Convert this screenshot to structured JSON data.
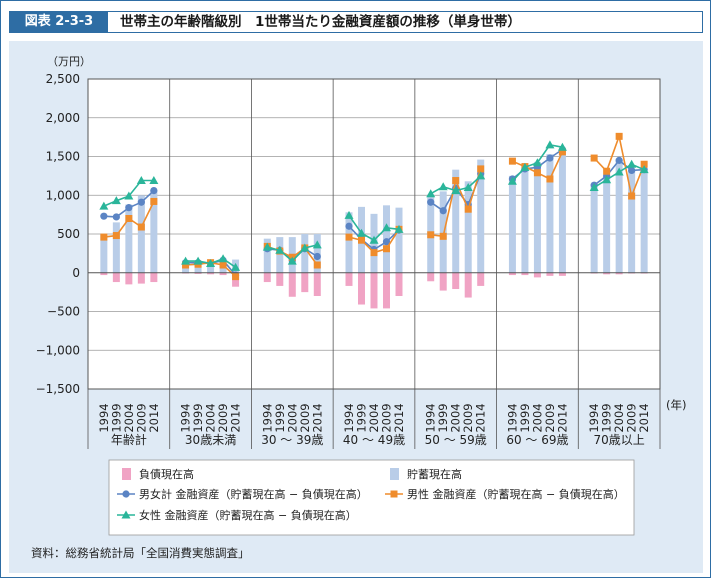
{
  "header": {
    "figure_label": "図表 2-3-3",
    "title": "世帯主の年齢階級別　1世帯当たり金融資産額の推移（単身世帯）"
  },
  "source": "資料：総務省統計局「全国消費実態調査」",
  "colors": {
    "frame": "#2e6da4",
    "panel": "#dfeaf5",
    "savings": "#b9cde8",
    "debt": "#f0a3c4",
    "total": "#5b84c4",
    "male": "#ef8c2c",
    "female": "#2ab59a"
  },
  "chart_data": {
    "type": "bar",
    "unit_label": "（万円）",
    "x_unit_label": "(年)",
    "ylim": [
      -1500,
      2500
    ],
    "yticks": [
      2500,
      2000,
      1500,
      1000,
      500,
      0,
      -500,
      -1000,
      -1500
    ],
    "ytick_labels": [
      "2,500",
      "2,000",
      "1,500",
      "1,000",
      "500",
      "0",
      "−500",
      "−1,000",
      "−1,500"
    ],
    "grid": true,
    "groups": [
      {
        "label": "年齢計",
        "years": [
          "1994",
          "1999",
          "2004",
          "2009",
          "2014"
        ],
        "savings": [
          500,
          650,
          880,
          1000,
          1070
        ],
        "debt": [
          -30,
          -120,
          -150,
          -140,
          -120
        ],
        "total": [
          730,
          720,
          840,
          910,
          1060
        ],
        "male": [
          460,
          480,
          700,
          590,
          920
        ],
        "female": [
          860,
          930,
          990,
          1190,
          1190
        ]
      },
      {
        "label": "30歳未満",
        "years": [
          "1994",
          "1999",
          "2004",
          "2009",
          "2014"
        ],
        "savings": [
          150,
          150,
          160,
          160,
          170
        ],
        "debt": [
          -10,
          -15,
          -20,
          -30,
          -180
        ],
        "total": [
          130,
          130,
          120,
          160,
          -30
        ],
        "male": [
          100,
          110,
          130,
          100,
          -50
        ],
        "female": [
          150,
          150,
          120,
          180,
          70
        ]
      },
      {
        "label": "30 ～ 39歳",
        "years": [
          "1994",
          "1999",
          "2004",
          "2009",
          "2014"
        ],
        "savings": [
          440,
          460,
          460,
          500,
          500
        ],
        "debt": [
          -120,
          -170,
          -310,
          -250,
          -300
        ],
        "total": [
          310,
          290,
          160,
          310,
          210
        ],
        "male": [
          340,
          280,
          200,
          320,
          100
        ],
        "female": [
          330,
          290,
          150,
          320,
          360
        ]
      },
      {
        "label": "40 ～ 49歳",
        "years": [
          "1994",
          "1999",
          "2004",
          "2009",
          "2014"
        ],
        "savings": [
          780,
          850,
          760,
          870,
          840
        ],
        "debt": [
          -170,
          -410,
          -460,
          -460,
          -300
        ],
        "total": [
          600,
          430,
          300,
          400,
          550
        ],
        "male": [
          460,
          420,
          260,
          310,
          560
        ],
        "female": [
          740,
          510,
          420,
          580,
          560
        ]
      },
      {
        "label": "50 ～ 59歳",
        "years": [
          "1994",
          "1999",
          "2004",
          "2009",
          "2014"
        ],
        "savings": [
          1010,
          1050,
          1330,
          1180,
          1460
        ],
        "debt": [
          -110,
          -230,
          -210,
          -320,
          -170
        ],
        "total": [
          910,
          800,
          1090,
          880,
          1280
        ],
        "male": [
          490,
          470,
          1190,
          820,
          1340
        ],
        "female": [
          1020,
          1110,
          1060,
          1100,
          1250
        ]
      },
      {
        "label": "60 ～ 69歳",
        "years": [
          "1994",
          "1999",
          "2004",
          "2009",
          "2014"
        ],
        "savings": [
          1250,
          1380,
          1430,
          1530,
          1600
        ],
        "debt": [
          -30,
          -30,
          -60,
          -40,
          -40
        ],
        "total": [
          1210,
          1340,
          1360,
          1480,
          1590
        ],
        "male": [
          1440,
          1370,
          1290,
          1210,
          1560
        ],
        "female": [
          1180,
          1360,
          1420,
          1650,
          1620
        ]
      },
      {
        "label": "70歳以上",
        "years": [
          "1994",
          "1999",
          "2004",
          "2009",
          "2014"
        ],
        "savings": [
          1130,
          1250,
          1470,
          1330,
          1340
        ],
        "debt": [
          -10,
          -20,
          -20,
          -10,
          -10
        ],
        "total": [
          1130,
          1250,
          1450,
          1320,
          1330
        ],
        "male": [
          1480,
          1310,
          1760,
          990,
          1400
        ],
        "female": [
          1100,
          1200,
          1300,
          1400,
          1330
        ]
      }
    ],
    "legend": {
      "debt": "負債現在高",
      "savings": "貯蓄現在高",
      "total": "男女計 金融資産（貯蓄現在高 − 負債現在高）",
      "male": "男性 金融資産（貯蓄現在高 − 負債現在高）",
      "female": "女性 金融資産（貯蓄現在高 − 負債現在高）"
    }
  }
}
